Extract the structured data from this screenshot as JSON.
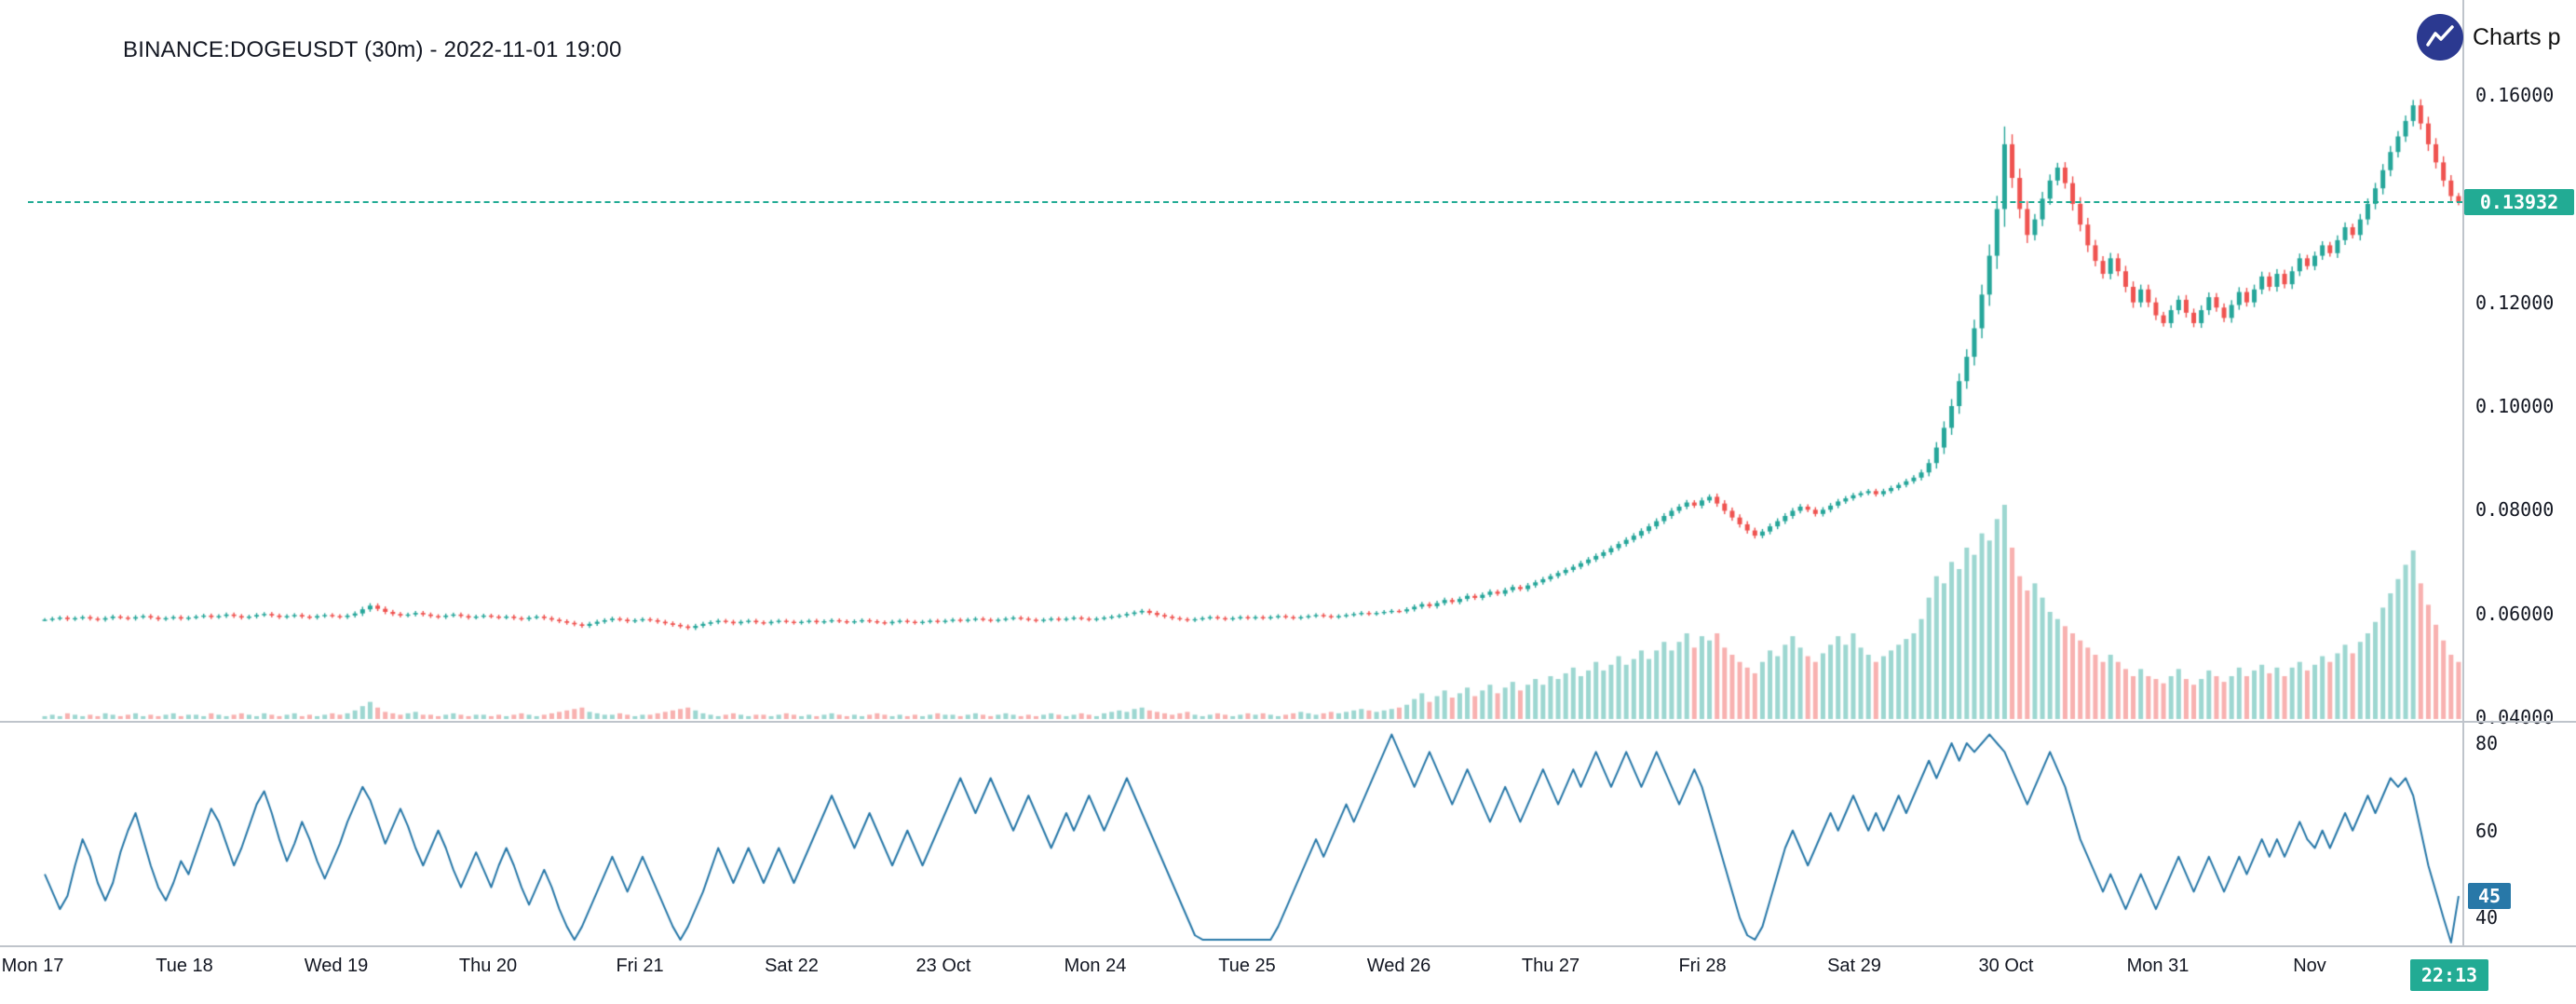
{
  "header": {
    "symbol_label": "BINANCE:DOGEUSDT (30m) - 2022-11-01 19:00"
  },
  "attribution": {
    "label": "Charts p",
    "icon": "line-chart-icon"
  },
  "price_axis": {
    "ticks": [
      "0.16000",
      "0.12000",
      "0.10000",
      "0.08000",
      "0.06000",
      "0.04000"
    ],
    "last_price_label": "0.13932",
    "last_price": 0.13932,
    "range": [
      0.04,
      0.16
    ]
  },
  "rsi_axis": {
    "ticks": [
      "80",
      "60",
      "40"
    ],
    "current_label": "45",
    "current": 45
  },
  "time_axis": {
    "labels": [
      "Mon 17",
      "Tue 18",
      "Wed 19",
      "Thu 20",
      "Fri 21",
      "Sat 22",
      "23 Oct",
      "Mon 24",
      "Tue 25",
      "Wed 26",
      "Thu 27",
      "Fri 28",
      "Sat 29",
      "30 Oct",
      "Mon 31",
      "Nov"
    ],
    "current_time_label": "22:13"
  },
  "colors": {
    "up": "#26a69a",
    "down": "#ef5350",
    "rsi_line": "#2878a8",
    "rsi_badge": "#2878a8",
    "price_badge": "#22ab94",
    "time_badge": "#22ab94",
    "axis_text": "#131722",
    "divider": "#bfc4cb",
    "attribution_circle": "#2b3990"
  },
  "chart_data": [
    {
      "type": "candlestick",
      "title": "BINANCE:DOGEUSDT (30m) - 2022-11-01 19:00",
      "ohlc_rule": "open of each candle equals previous close; values estimated from chart",
      "y_range": [
        0.04,
        0.16
      ],
      "last_price": 0.13932,
      "candles_per_day": 20,
      "day_labels": [
        "Mon 17",
        "Tue 18",
        "Wed 19",
        "Thu 20",
        "Fri 21",
        "Sat 22",
        "23 Oct",
        "Mon 24",
        "Tue 25",
        "Wed 26",
        "Thu 27",
        "Fri 28",
        "Sat 29",
        "30 Oct",
        "Mon 31",
        "Nov"
      ],
      "closes": [
        0.0588,
        0.059,
        0.0592,
        0.0589,
        0.0591,
        0.0593,
        0.059,
        0.0588,
        0.0591,
        0.0594,
        0.0592,
        0.059,
        0.0593,
        0.0595,
        0.0592,
        0.0589,
        0.0591,
        0.0593,
        0.059,
        0.0592,
        0.0594,
        0.0596,
        0.0593,
        0.0595,
        0.0598,
        0.0595,
        0.0592,
        0.0594,
        0.0597,
        0.0599,
        0.0596,
        0.0593,
        0.0595,
        0.0597,
        0.0594,
        0.0592,
        0.0595,
        0.0597,
        0.0595,
        0.0593,
        0.0596,
        0.06,
        0.0608,
        0.0615,
        0.0609,
        0.0603,
        0.0599,
        0.0596,
        0.0598,
        0.0601,
        0.0598,
        0.0595,
        0.0593,
        0.0596,
        0.0598,
        0.0595,
        0.0592,
        0.0594,
        0.0596,
        0.0594,
        0.0592,
        0.0594,
        0.0591,
        0.0589,
        0.0592,
        0.0594,
        0.0591,
        0.0588,
        0.0585,
        0.0582,
        0.0579,
        0.0576,
        0.058,
        0.0584,
        0.0587,
        0.059,
        0.0588,
        0.0585,
        0.0587,
        0.0589,
        0.0587,
        0.0584,
        0.0581,
        0.0578,
        0.0575,
        0.0572,
        0.0576,
        0.058,
        0.0583,
        0.0586,
        0.0584,
        0.0581,
        0.0584,
        0.0586,
        0.0583,
        0.0581,
        0.0584,
        0.0586,
        0.0584,
        0.0582,
        0.0584,
        0.0586,
        0.0583,
        0.0585,
        0.0587,
        0.0585,
        0.0583,
        0.0585,
        0.0587,
        0.0585,
        0.0583,
        0.0581,
        0.0584,
        0.0586,
        0.0584,
        0.0582,
        0.0584,
        0.0586,
        0.0584,
        0.0586,
        0.0588,
        0.0586,
        0.0588,
        0.059,
        0.0588,
        0.0586,
        0.0588,
        0.059,
        0.0592,
        0.059,
        0.0588,
        0.0586,
        0.0588,
        0.059,
        0.0588,
        0.059,
        0.0592,
        0.059,
        0.0588,
        0.059,
        0.0592,
        0.0594,
        0.0596,
        0.0599,
        0.0602,
        0.0605,
        0.0601,
        0.0597,
        0.0594,
        0.0591,
        0.0589,
        0.0587,
        0.0589,
        0.0591,
        0.0593,
        0.0591,
        0.0589,
        0.0591,
        0.0593,
        0.0591,
        0.0593,
        0.0591,
        0.0593,
        0.0595,
        0.0593,
        0.0591,
        0.0593,
        0.0595,
        0.0597,
        0.0595,
        0.0593,
        0.0595,
        0.0597,
        0.0599,
        0.0601,
        0.0599,
        0.0601,
        0.0603,
        0.0605,
        0.0604,
        0.0608,
        0.0613,
        0.0618,
        0.0614,
        0.062,
        0.0626,
        0.0622,
        0.0628,
        0.0634,
        0.063,
        0.0636,
        0.0642,
        0.0638,
        0.0645,
        0.0651,
        0.0647,
        0.0654,
        0.066,
        0.0666,
        0.0672,
        0.0678,
        0.0684,
        0.069,
        0.0697,
        0.0704,
        0.0711,
        0.0718,
        0.0726,
        0.0734,
        0.0742,
        0.075,
        0.0759,
        0.0768,
        0.0778,
        0.0788,
        0.0798,
        0.0806,
        0.0814,
        0.0808,
        0.0818,
        0.0825,
        0.0812,
        0.0798,
        0.0785,
        0.0772,
        0.076,
        0.075,
        0.0758,
        0.0768,
        0.0778,
        0.0788,
        0.0798,
        0.0806,
        0.08,
        0.0792,
        0.08,
        0.0808,
        0.0816,
        0.0822,
        0.0828,
        0.0832,
        0.0836,
        0.083,
        0.0836,
        0.0842,
        0.0848,
        0.0855,
        0.0862,
        0.0872,
        0.089,
        0.092,
        0.0958,
        0.1,
        0.1048,
        0.1095,
        0.115,
        0.1215,
        0.129,
        0.138,
        0.1505,
        0.144,
        0.138,
        0.133,
        0.136,
        0.14,
        0.1435,
        0.146,
        0.143,
        0.139,
        0.135,
        0.131,
        0.128,
        0.1255,
        0.1285,
        0.126,
        0.123,
        0.12,
        0.1225,
        0.12,
        0.1175,
        0.116,
        0.1185,
        0.1205,
        0.118,
        0.116,
        0.1185,
        0.121,
        0.119,
        0.117,
        0.1195,
        0.122,
        0.12,
        0.1225,
        0.125,
        0.123,
        0.1255,
        0.1235,
        0.126,
        0.1285,
        0.127,
        0.129,
        0.131,
        0.1295,
        0.132,
        0.1345,
        0.133,
        0.136,
        0.139,
        0.142,
        0.1455,
        0.149,
        0.152,
        0.155,
        0.158,
        0.1545,
        0.1505,
        0.147,
        0.1435,
        0.1405,
        0.13932
      ]
    },
    {
      "type": "bar",
      "name": "volume",
      "values": [
        2,
        3,
        2,
        4,
        3,
        2,
        3,
        2,
        4,
        3,
        2,
        3,
        4,
        2,
        3,
        2,
        3,
        4,
        2,
        3,
        3,
        2,
        4,
        3,
        2,
        3,
        4,
        3,
        2,
        4,
        3,
        2,
        3,
        4,
        2,
        3,
        2,
        3,
        4,
        3,
        4,
        6,
        9,
        12,
        8,
        5,
        4,
        3,
        4,
        5,
        3,
        3,
        2,
        3,
        4,
        3,
        2,
        3,
        3,
        2,
        3,
        2,
        3,
        4,
        3,
        2,
        3,
        4,
        5,
        6,
        7,
        8,
        5,
        4,
        3,
        3,
        4,
        3,
        2,
        3,
        3,
        4,
        5,
        6,
        7,
        8,
        6,
        4,
        3,
        2,
        3,
        4,
        3,
        2,
        3,
        3,
        2,
        3,
        4,
        3,
        2,
        3,
        2,
        3,
        4,
        3,
        2,
        3,
        2,
        3,
        4,
        3,
        2,
        3,
        2,
        3,
        2,
        3,
        4,
        3,
        3,
        2,
        3,
        4,
        3,
        2,
        3,
        4,
        3,
        2,
        3,
        2,
        3,
        4,
        3,
        2,
        3,
        4,
        3,
        2,
        4,
        5,
        6,
        5,
        7,
        8,
        6,
        5,
        4,
        3,
        4,
        5,
        3,
        2,
        3,
        4,
        3,
        2,
        3,
        4,
        3,
        4,
        3,
        2,
        3,
        4,
        5,
        4,
        3,
        4,
        5,
        4,
        5,
        6,
        7,
        6,
        5,
        6,
        7,
        8,
        10,
        14,
        18,
        12,
        16,
        20,
        15,
        18,
        22,
        16,
        20,
        24,
        18,
        22,
        26,
        20,
        24,
        28,
        24,
        30,
        28,
        32,
        36,
        30,
        34,
        40,
        34,
        38,
        44,
        38,
        42,
        48,
        42,
        48,
        54,
        48,
        54,
        60,
        50,
        58,
        55,
        60,
        50,
        45,
        40,
        36,
        32,
        40,
        48,
        44,
        52,
        58,
        50,
        44,
        40,
        46,
        52,
        58,
        52,
        60,
        50,
        45,
        40,
        44,
        48,
        52,
        56,
        60,
        70,
        85,
        100,
        95,
        110,
        105,
        120,
        115,
        130,
        125,
        140,
        150,
        120,
        100,
        90,
        95,
        85,
        75,
        70,
        65,
        60,
        55,
        50,
        45,
        40,
        45,
        40,
        35,
        30,
        35,
        30,
        28,
        25,
        30,
        35,
        28,
        24,
        28,
        34,
        30,
        26,
        30,
        36,
        30,
        34,
        38,
        32,
        36,
        30,
        36,
        40,
        34,
        38,
        44,
        40,
        46,
        52,
        46,
        54,
        60,
        68,
        78,
        88,
        98,
        108,
        118,
        95,
        80,
        66,
        55,
        45,
        40
      ]
    },
    {
      "type": "line",
      "name": "RSI",
      "y_ticks": [
        80,
        60,
        40
      ],
      "current": 45,
      "values": [
        50,
        46,
        42,
        45,
        52,
        58,
        54,
        48,
        44,
        48,
        55,
        60,
        64,
        58,
        52,
        47,
        44,
        48,
        53,
        50,
        55,
        60,
        65,
        62,
        57,
        52,
        56,
        61,
        66,
        69,
        64,
        58,
        53,
        57,
        62,
        58,
        53,
        49,
        53,
        57,
        62,
        66,
        70,
        67,
        62,
        57,
        61,
        65,
        61,
        56,
        52,
        56,
        60,
        56,
        51,
        47,
        51,
        55,
        51,
        47,
        52,
        56,
        52,
        47,
        43,
        47,
        51,
        47,
        42,
        38,
        35,
        38,
        42,
        46,
        50,
        54,
        50,
        46,
        50,
        54,
        50,
        46,
        42,
        38,
        35,
        38,
        42,
        46,
        51,
        56,
        52,
        48,
        52,
        56,
        52,
        48,
        52,
        56,
        52,
        48,
        52,
        56,
        60,
        64,
        68,
        64,
        60,
        56,
        60,
        64,
        60,
        56,
        52,
        56,
        60,
        56,
        52,
        56,
        60,
        64,
        68,
        72,
        68,
        64,
        68,
        72,
        68,
        64,
        60,
        64,
        68,
        64,
        60,
        56,
        60,
        64,
        60,
        64,
        68,
        64,
        60,
        64,
        68,
        72,
        68,
        64,
        60,
        56,
        52,
        48,
        44,
        40,
        36,
        35,
        35,
        35,
        35,
        35,
        35,
        35,
        35,
        35,
        35,
        38,
        42,
        46,
        50,
        54,
        58,
        54,
        58,
        62,
        66,
        62,
        66,
        70,
        74,
        78,
        82,
        78,
        74,
        70,
        74,
        78,
        74,
        70,
        66,
        70,
        74,
        70,
        66,
        62,
        66,
        70,
        66,
        62,
        66,
        70,
        74,
        70,
        66,
        70,
        74,
        70,
        74,
        78,
        74,
        70,
        74,
        78,
        74,
        70,
        74,
        78,
        74,
        70,
        66,
        70,
        74,
        70,
        64,
        58,
        52,
        46,
        40,
        36,
        35,
        38,
        44,
        50,
        56,
        60,
        56,
        52,
        56,
        60,
        64,
        60,
        64,
        68,
        64,
        60,
        64,
        60,
        64,
        68,
        64,
        68,
        72,
        76,
        72,
        76,
        80,
        76,
        80,
        78,
        80,
        82,
        80,
        78,
        74,
        70,
        66,
        70,
        74,
        78,
        74,
        70,
        64,
        58,
        54,
        50,
        46,
        50,
        46,
        42,
        46,
        50,
        46,
        42,
        46,
        50,
        54,
        50,
        46,
        50,
        54,
        50,
        46,
        50,
        54,
        50,
        54,
        58,
        54,
        58,
        54,
        58,
        62,
        58,
        56,
        60,
        56,
        60,
        64,
        60,
        64,
        68,
        64,
        68,
        72,
        70,
        72,
        68,
        60,
        52,
        46,
        40,
        33,
        45
      ]
    }
  ]
}
